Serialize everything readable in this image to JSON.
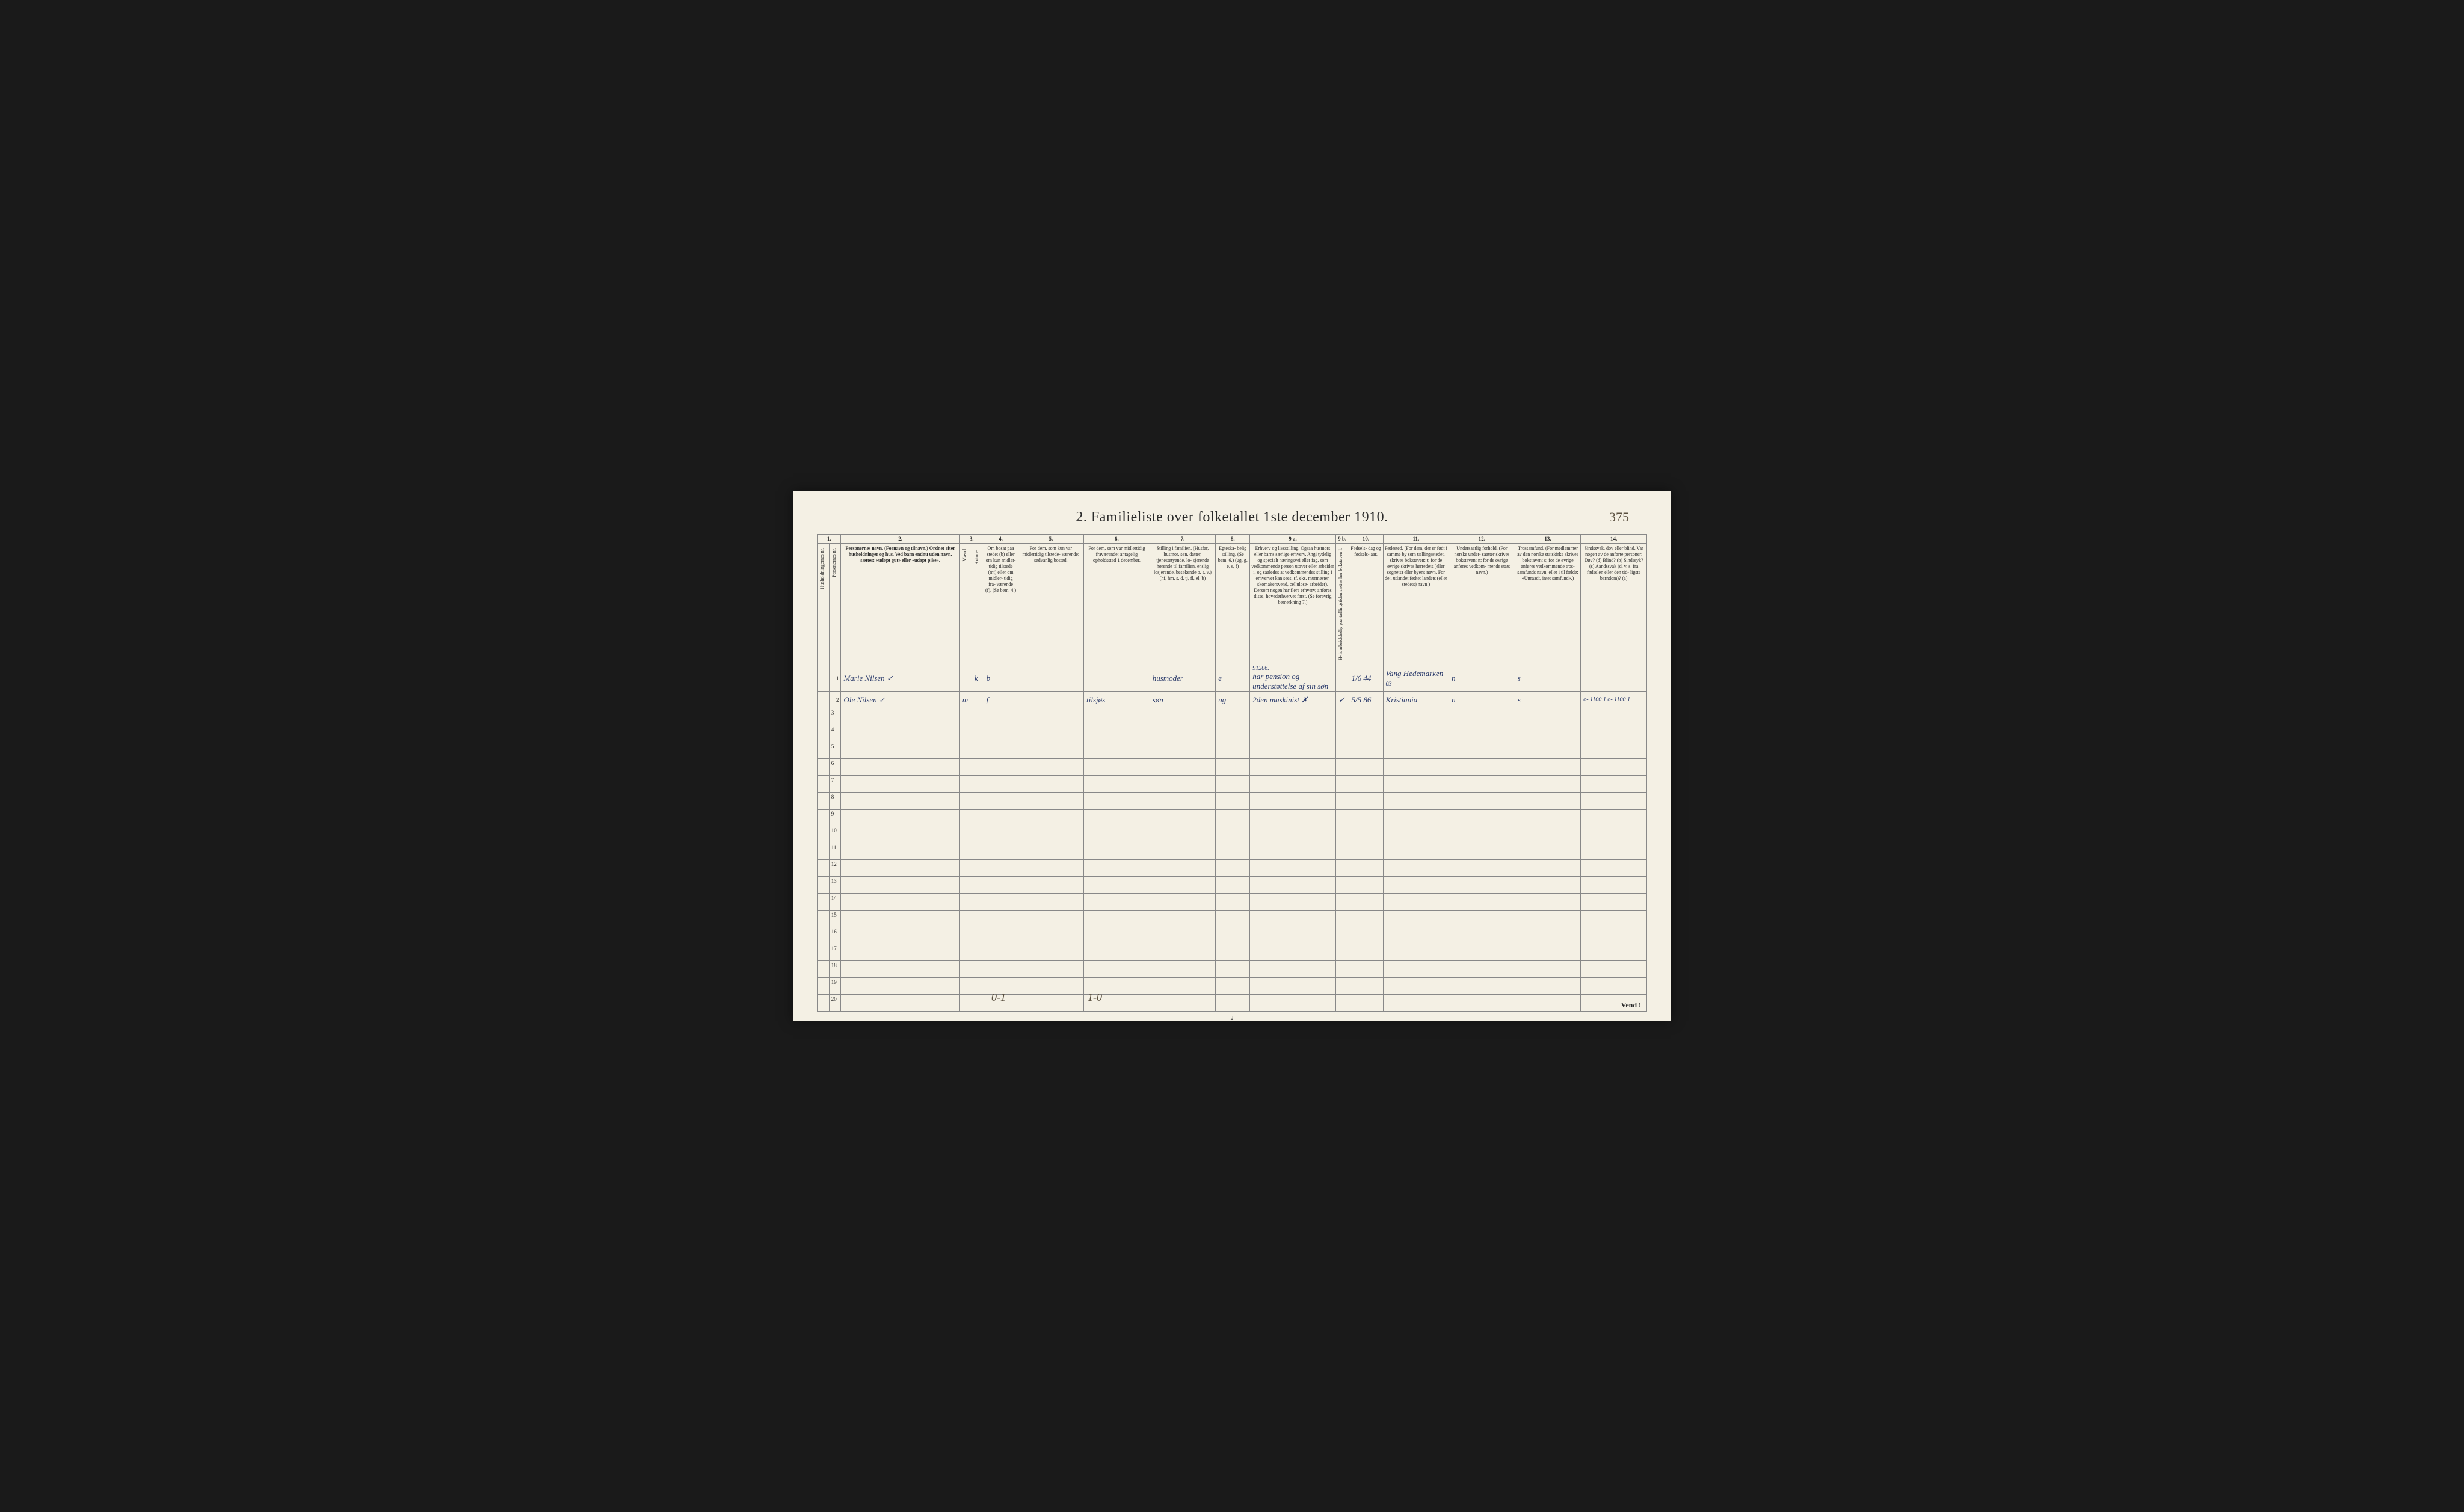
{
  "page_number_top": "375",
  "title": "2.  Familieliste over folketallet 1ste december 1910.",
  "column_numbers": [
    "1.",
    "",
    "2.",
    "3.",
    "",
    "4.",
    "5.",
    "6.",
    "7.",
    "8.",
    "9 a.",
    "9 b.",
    "10.",
    "11.",
    "12.",
    "13.",
    "14."
  ],
  "headers": {
    "c1a": "Husholdningernes nr.",
    "c1b": "Personernes nr.",
    "c2": "Personernes navn.\n(Fornavn og tilnavn.)\nOrdnet efter husholdninger og hus.\nVed barn endnu uden navn, sættes: «udøpt gut»\neller «udøpt pike».",
    "c3": "Kjøn.",
    "c3a": "Mænd.",
    "c3b": "Kvinder.",
    "c3sub": "m.   k.",
    "c4": "Om bosat\npaa stedet\n(b) eller om\nkun midler-\ntidig tilstede\n(mt) eller\nom midler-\ntidig fra-\nværende (f).\n(Se bem. 4.)",
    "c5": "For dem, som kun var\nmidlertidig tilstede-\nværende:\nsedvanlig bosted.",
    "c6": "For dem, som var\nmidlertidig\nfraværende:\nantagelig opholdssted\n1 december.",
    "c7": "Stilling i familien.\n(Husfar, husmor, søn,\ndatter, tjenestetyende, lo-\nsjerende hørende til familien,\nenslig losjerende, besøkende\no. s. v.)\n(hf, hm, s, d, tj, fl,\nel, b)",
    "c8": "Egteska-\nbelig\nstilling.\n(Se bem. 6.)\n(ug, g,\ne, s, f)",
    "c9a": "Erhverv og livsstilling.\nOgsaa husmors eller barns særlige erhverv.\nAngi tydelig og specielt næringsvei eller fag, som\nvedkommende person utøver eller arbeider i,\nog saaledes at vedkommendes stilling i erhvervet kan\nsees. (f. eks. murmester, skomakersvend, cellulose-\narbeider). Dersom nogen har flere erhverv,\nanføres disse, hovederhvervet først.\n(Se forøvrig bemerkning 7.)",
    "c9b": "Hvis arbeidsledig\npaa tællingstiden sættes\nher bokstaven l.",
    "c10": "Fødsels-\ndag\nog\nfødsels-\naar.",
    "c11": "Fødested.\n(For dem, der er født\ni samme by som\ntællingsstedet,\nskrives bokstaven: t;\nfor de øvrige skrives\nherredets (eller sognets)\neller byens navn.\nFor de i utlandet fødte:\nlandets (eller stedets)\nnavn.)",
    "c12": "Undersaatlig\nforhold.\n(For norske under-\nsaatter skrives\nbokstaven: n;\nfor de øvrige\nanføres vedkom-\nmende stats navn.)",
    "c13": "Trossamfund.\n(For medlemmer av\nden norske statskirke\nskrives bokstaven: s;\nfor de øvrige anføres\nvedkommende tros-\nsamfunds navn, eller i til\nfælde: «Uttraadt, intet\nsamfund».)",
    "c14": "Sindssvak, døv\neller blind.\nVar nogen av de anførte\npersoner:\nDøv?      (d)\nBlind?    (b)\nSindssyk? (s)\nAandssvak (d. v. s. fra\nfødselen eller den tid-\nligste barndom)? (a)"
  },
  "entries": [
    {
      "row": "1",
      "name": "Marie Nilsen ✓",
      "sex_m": "",
      "sex_k": "k",
      "status": "b",
      "temp_present": "",
      "temp_absent": "",
      "family_pos": "husmoder",
      "marital": "e",
      "occupation_note": "91206.",
      "occupation": "har pension og understøttelse af sin søn",
      "unemployed": "",
      "birthdate": "1/6 44",
      "birthplace": "Vang Hedemarken",
      "extra": "03",
      "nationality": "n",
      "religion": "s",
      "disability": ""
    },
    {
      "row": "2",
      "name": "Ole   Nilsen   ✓",
      "sex_m": "m",
      "sex_k": "",
      "status": "f",
      "temp_present": "",
      "temp_absent": "tilsjøs",
      "family_pos": "søn",
      "marital": "ug",
      "occupation_note": "",
      "occupation": "2den maskinist ✗",
      "unemployed": "✓",
      "birthdate": "5/5 86",
      "birthplace": "Kristiania",
      "extra": "",
      "nationality": "n",
      "religion": "s",
      "disability": "o- 1100 1\no- 1100 1"
    }
  ],
  "empty_rows": [
    3,
    4,
    5,
    6,
    7,
    8,
    9,
    10,
    11,
    12,
    13,
    14,
    15,
    16,
    17,
    18,
    19,
    20
  ],
  "bottom_page_number": "2",
  "vend": "Vend !",
  "handwritten_bottom_1": "0-1",
  "handwritten_bottom_2": "1-0"
}
